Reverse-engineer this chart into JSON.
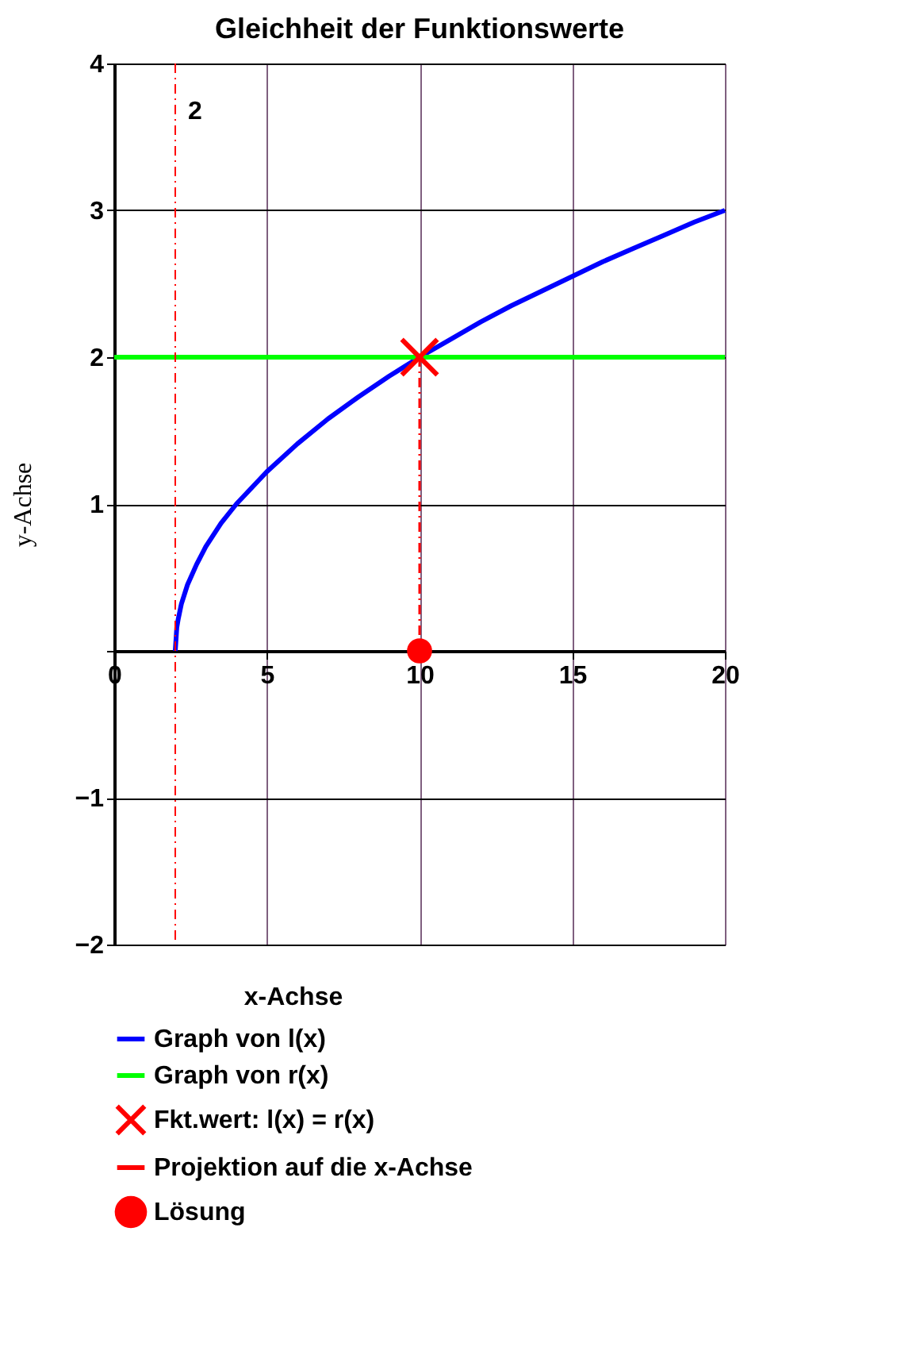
{
  "chart_data": {
    "type": "line",
    "title": "Gleichheit der Funktionswerte",
    "xlabel": "x-Achse",
    "ylabel": "y-Achse",
    "xlim": [
      0,
      20
    ],
    "ylim": [
      -2,
      4
    ],
    "xticks": [
      0,
      5,
      10,
      15,
      20
    ],
    "yticks": [
      {
        "value": -2,
        "label": "−2"
      },
      {
        "value": -1,
        "label": "−1"
      },
      {
        "value": 0,
        "label": null
      },
      1,
      2,
      3,
      4
    ],
    "grid": true,
    "legend": "bottom",
    "series": [
      {
        "name": "Graph von l(x)",
        "color": "#0000ff",
        "line_style": "solid",
        "x": [
          2,
          2.05,
          2.1,
          2.2,
          2.4,
          2.7,
          3,
          3.5,
          4,
          5,
          6,
          7,
          8,
          9,
          10,
          11,
          12,
          13,
          14,
          15,
          16,
          17,
          18,
          19,
          20
        ],
        "values": [
          0,
          0.16,
          0.22,
          0.32,
          0.45,
          0.59,
          0.71,
          0.87,
          1,
          1.22,
          1.41,
          1.58,
          1.73,
          1.87,
          2,
          2.12,
          2.24,
          2.35,
          2.45,
          2.55,
          2.65,
          2.74,
          2.83,
          2.92,
          3
        ]
      },
      {
        "name": "Graph von r(x)",
        "color": "#00ff00",
        "line_style": "solid",
        "x": [
          0,
          20
        ],
        "values": [
          2,
          2
        ]
      },
      {
        "name": "Fkt.wert:  l(x) = r(x)",
        "type": "scatter",
        "color": "#ff0000",
        "marker": "cross",
        "x": [
          10
        ],
        "values": [
          2
        ]
      },
      {
        "name": "Projektion auf die x-Achse",
        "color": "#ff0000",
        "line_style": "dashed",
        "x": [
          10,
          10
        ],
        "values": [
          2,
          0
        ]
      },
      {
        "name": "Lösung",
        "type": "scatter",
        "color": "#ff0000",
        "marker": "circle",
        "x": [
          10
        ],
        "values": [
          0
        ]
      }
    ],
    "ref_lines": [
      {
        "axis": "x",
        "value": 2,
        "label": "2",
        "color": "#ff0000",
        "line_style": "dashed"
      }
    ]
  }
}
